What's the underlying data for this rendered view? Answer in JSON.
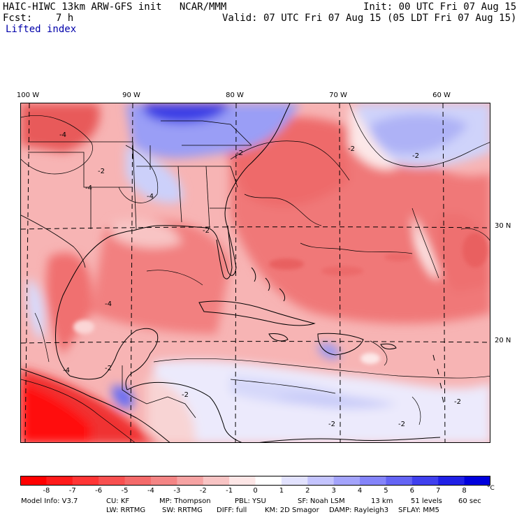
{
  "header": {
    "title": "HAIC-HIWC 13km ARW-GFS init   NCAR/MMM",
    "init": "Init: 00 UTC Fri 07 Aug 15",
    "fcst": "Fcst:    7 h",
    "valid": "Valid: 07 UTC Fri 07 Aug 15 (05 LDT Fri 07 Aug 15)",
    "field": "Lifted index"
  },
  "map": {
    "lon_labels": [
      "100 W",
      "90 W",
      "80 W",
      "70 W",
      "60 W"
    ],
    "lat_labels": [
      "30 N",
      "20 N"
    ],
    "contour_labels": [
      "-4",
      "-2",
      "-4",
      "-2",
      "-2",
      "-4",
      "-2",
      "-2",
      "-4",
      "-4",
      "-2",
      "-2",
      "-2",
      "-2",
      "-2"
    ]
  },
  "colorbar": {
    "ticks": [
      "-8",
      "-7",
      "-6",
      "-5",
      "-4",
      "-3",
      "-2",
      "-1",
      "0",
      "1",
      "2",
      "3",
      "4",
      "5",
      "6",
      "7",
      "8"
    ],
    "unit": "°C",
    "colors": [
      "#ff0000",
      "#ff1a1a",
      "#ff3535",
      "#f85050",
      "#f46a6a",
      "#f48585",
      "#f6a3a3",
      "#f8c4c4",
      "#fde6e6",
      "#ffffff",
      "#e2e2fe",
      "#c4c4fe",
      "#a4a4fc",
      "#8484fa",
      "#6464f4",
      "#4040ee",
      "#2020e6",
      "#0000dd"
    ]
  },
  "model_info": {
    "line1": [
      "Model Info: V3.7",
      "CU: KF",
      "MP: Thompson",
      "PBL: YSU",
      "SF: Noah LSM",
      "13 km",
      "51 levels",
      "60 sec"
    ],
    "line2": [
      "LW: RRTMG",
      "SW: RRTMG",
      "DIFF: full",
      "KM: 2D Smagor",
      "DAMP: Rayleigh3",
      "SFLAY: MM5"
    ]
  }
}
